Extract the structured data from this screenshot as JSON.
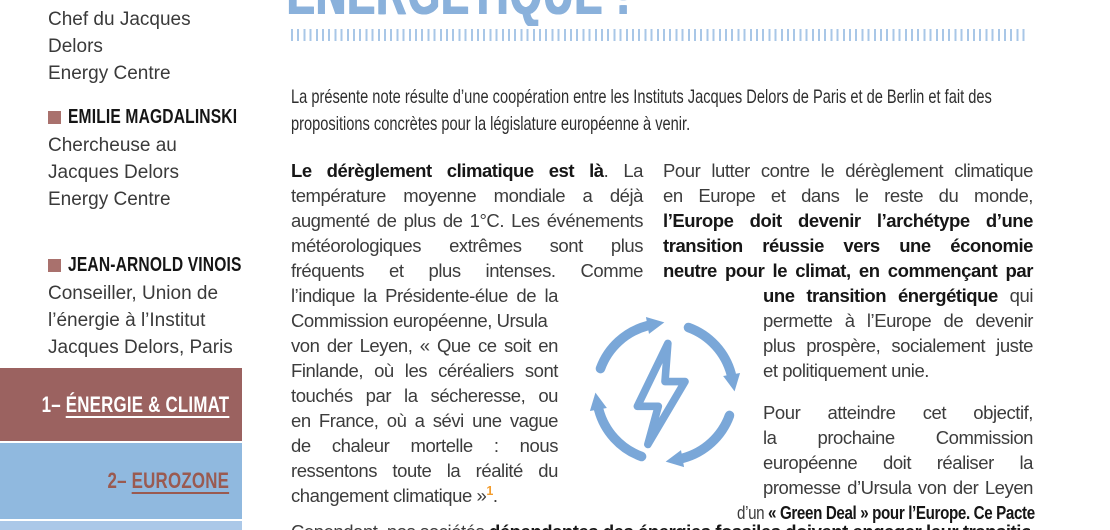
{
  "document": {
    "title_fragment": "ÉNERGÉTIQUE !",
    "intro_lines": [
      "La présente note résulte d’une coopération entre les Instituts Jacques Delors de Paris et de Berlin et fait des",
      "propositions concrètes pour la législature européenne à venir."
    ]
  },
  "sidebar": {
    "authors": [
      {
        "role_lines": [
          "Chef du Jacques Delors",
          "Energy Centre"
        ]
      },
      {
        "name": "EMILIE MAGDALINSKI",
        "role_lines": [
          "Chercheuse au",
          "Jacques Delors",
          "Energy Centre"
        ]
      },
      {
        "name": "JEAN-ARNOLD VINOIS",
        "role_lines": [
          "Conseiller, Union de",
          "l’énergie à l’Institut",
          "Jacques Delors, Paris"
        ]
      }
    ],
    "toc": [
      {
        "number": "1– ",
        "label": "ÉNERGIE & CLIMAT"
      },
      {
        "number": "2– ",
        "label": "EUROZONE"
      }
    ]
  },
  "columns": {
    "left_lines": [
      [
        {
          "t": "Le dérèglement climatique est là",
          "b": true
        },
        {
          "t": ". La"
        }
      ],
      [
        {
          "t": "température moyenne mondiale a déjà"
        }
      ],
      [
        {
          "t": "augmenté de plus de 1°C. Les événements"
        }
      ],
      [
        {
          "t": "météorologiques extrêmes sont plus"
        }
      ],
      [
        {
          "t": "fréquents et plus intenses. Comme"
        }
      ],
      [
        {
          "t": "l’indique la Présidente-élue de la"
        }
      ],
      [
        {
          "t": "Commission européenne, Ursula"
        }
      ],
      [
        {
          "t": "von der Leyen, « Que ce soit en"
        }
      ],
      [
        {
          "t": "Finlande, où les céréaliers sont"
        }
      ],
      [
        {
          "t": "touchés par la sécheresse, ou"
        }
      ],
      [
        {
          "t": "en France, où a sévi une vague"
        }
      ],
      [
        {
          "t": "de chaleur mortelle : nous"
        }
      ],
      [
        {
          "t": "ressentons toute la réalité du"
        }
      ],
      [
        {
          "t": "changement climatique »"
        },
        {
          "t": "1",
          "sup": true
        },
        {
          "t": "."
        }
      ]
    ],
    "right_lines": [
      [
        {
          "t": "Pour lutter contre le dérèglement climatique"
        }
      ],
      [
        {
          "t": "en Europe et dans le reste du monde,"
        }
      ],
      [
        {
          "t": "l’Europe doit devenir l’archétype d’une",
          "b": true
        }
      ],
      [
        {
          "t": "transition réussie vers une économie",
          "b": true
        }
      ],
      [
        {
          "t": "neutre pour le climat, en commençant par",
          "b": true
        }
      ],
      [
        {
          "t": "une transition énergétique",
          "b": true
        },
        {
          "t": " qui"
        }
      ],
      [
        {
          "t": "permette à l’Europe de devenir"
        }
      ],
      [
        {
          "t": "plus prospère, socialement juste"
        }
      ],
      [
        {
          "t": "et politiquement unie."
        }
      ],
      [
        {
          "t": "Pour atteindre cet objectif,"
        }
      ],
      [
        {
          "t": "la prochaine Commission"
        }
      ],
      [
        {
          "t": "européenne doit réaliser la"
        }
      ],
      [
        {
          "t": "promesse d’Ursula von der Leyen"
        }
      ],
      [
        {
          "t": "d’un "
        },
        {
          "t": "« Green Deal » pour l’Europe. Ce Pacte",
          "b": true
        }
      ]
    ],
    "bottom_clipped_runs": [
      {
        "t": "Cependant, nos sociétés "
      },
      {
        "t": "dépendantes des énergies fossiles doivent engager leur transition vers un modèle durable",
        "b": true
      }
    ]
  },
  "icon": {
    "name": "energy-cycle-lightning-icon",
    "color": "#7aa7d8"
  },
  "colors": {
    "title_blue": "#8ab1db",
    "hatch_blue": "#a9c7e7",
    "icon_blue": "#7aa7d8",
    "toc1_bg": "#9b6260",
    "toc2_bg": "#90b9df",
    "toc2_text": "#9a5a50",
    "strip_blue": "#abc8e8",
    "bullet_mauve": "#a9716d",
    "footnote_orange": "#f39c2c"
  }
}
